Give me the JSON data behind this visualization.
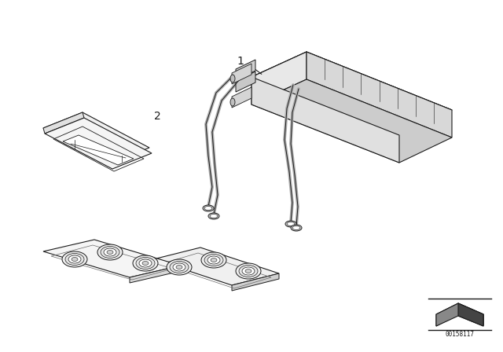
{
  "bg_color": "#ffffff",
  "line_color": "#1a1a1a",
  "label_1": "1",
  "label_2": "2",
  "part_number": "00158117",
  "fig_width": 6.4,
  "fig_height": 4.48,
  "dpi": 100
}
